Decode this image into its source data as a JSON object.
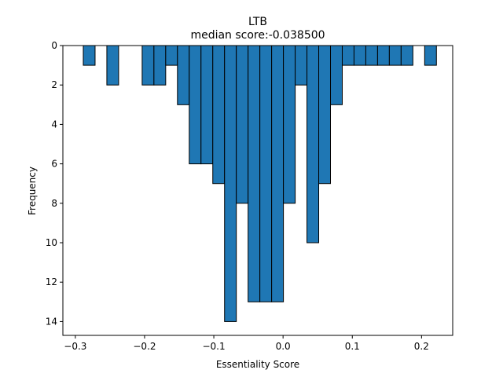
{
  "chart_data": {
    "type": "bar",
    "orientation": "inverted-y histogram",
    "title": "LTB",
    "subtitle": "median score:-0.038500",
    "xlabel": "Essentiality Score",
    "ylabel": "Frequency",
    "xlim": [
      -0.318,
      0.245
    ],
    "ylim": [
      0,
      14.7
    ],
    "y_inverted": true,
    "grid": false,
    "x_ticks": [
      -0.3,
      -0.2,
      -0.1,
      0.0,
      0.1,
      0.2
    ],
    "x_tick_labels": [
      "−0.3",
      "−0.2",
      "−0.1",
      "0.0",
      "0.1",
      "0.2"
    ],
    "y_ticks": [
      0,
      2,
      4,
      6,
      8,
      10,
      12,
      14
    ],
    "y_tick_labels": [
      "0",
      "2",
      "4",
      "6",
      "8",
      "10",
      "12",
      "14"
    ],
    "bin_width": 0.017,
    "bins": [
      {
        "x0": -0.2885,
        "x1": -0.2715,
        "count": 1
      },
      {
        "x0": -0.2545,
        "x1": -0.2375,
        "count": 2
      },
      {
        "x0": -0.2035,
        "x1": -0.1865,
        "count": 2
      },
      {
        "x0": -0.1865,
        "x1": -0.1695,
        "count": 2
      },
      {
        "x0": -0.1695,
        "x1": -0.1525,
        "count": 1
      },
      {
        "x0": -0.1525,
        "x1": -0.1355,
        "count": 3
      },
      {
        "x0": -0.1355,
        "x1": -0.1185,
        "count": 6
      },
      {
        "x0": -0.1185,
        "x1": -0.1015,
        "count": 6
      },
      {
        "x0": -0.1015,
        "x1": -0.0845,
        "count": 7
      },
      {
        "x0": -0.0845,
        "x1": -0.0675,
        "count": 14
      },
      {
        "x0": -0.0675,
        "x1": -0.0505,
        "count": 8
      },
      {
        "x0": -0.0505,
        "x1": -0.0335,
        "count": 13
      },
      {
        "x0": -0.0335,
        "x1": -0.0165,
        "count": 13
      },
      {
        "x0": -0.0165,
        "x1": 0.0005,
        "count": 13
      },
      {
        "x0": 0.0005,
        "x1": 0.0175,
        "count": 8
      },
      {
        "x0": 0.0175,
        "x1": 0.0345,
        "count": 2
      },
      {
        "x0": 0.0345,
        "x1": 0.0515,
        "count": 10
      },
      {
        "x0": 0.0515,
        "x1": 0.0685,
        "count": 7
      },
      {
        "x0": 0.0685,
        "x1": 0.0855,
        "count": 3
      },
      {
        "x0": 0.0855,
        "x1": 0.1025,
        "count": 1
      },
      {
        "x0": 0.1025,
        "x1": 0.1195,
        "count": 1
      },
      {
        "x0": 0.1195,
        "x1": 0.1365,
        "count": 1
      },
      {
        "x0": 0.1365,
        "x1": 0.1535,
        "count": 1
      },
      {
        "x0": 0.1535,
        "x1": 0.1705,
        "count": 1
      },
      {
        "x0": 0.1705,
        "x1": 0.1875,
        "count": 1
      },
      {
        "x0": 0.2045,
        "x1": 0.2215,
        "count": 1
      }
    ],
    "colors": {
      "bar_fill": "#1f77b4",
      "bar_edge": "#000000",
      "axis": "#000000"
    }
  }
}
